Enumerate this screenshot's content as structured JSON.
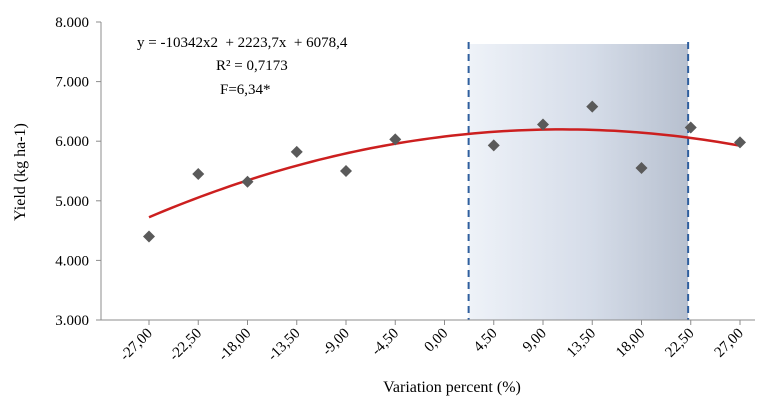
{
  "chart_data": {
    "type": "scatter",
    "xlabel": "Variation percent (%)",
    "ylabel": "Yield (kg ha-1)",
    "ylim": [
      3000,
      8000
    ],
    "yticks": [
      "3.000",
      "4.000",
      "5.000",
      "6.000",
      "7.000",
      "8.000"
    ],
    "yticks_values": [
      3000,
      4000,
      5000,
      6000,
      7000,
      8000
    ],
    "categories": [
      "-27,00",
      "-22,50",
      "-18,00",
      "-13,50",
      "-9,00",
      "-4,50",
      "0,00",
      "4,50",
      "9,00",
      "13,50",
      "18,00",
      "22,50",
      "27,00"
    ],
    "x": [
      -0.27,
      -0.225,
      -0.18,
      -0.135,
      -0.09,
      -0.045,
      0.0,
      0.045,
      0.09,
      0.135,
      0.18,
      0.225,
      0.27
    ],
    "points": [
      {
        "x": -0.27,
        "y": 4400
      },
      {
        "x": -0.225,
        "y": 5450
      },
      {
        "x": -0.18,
        "y": 5320
      },
      {
        "x": -0.135,
        "y": 5820
      },
      {
        "x": -0.09,
        "y": 5500
      },
      {
        "x": -0.045,
        "y": 6030
      },
      {
        "x": 0.045,
        "y": 5930
      },
      {
        "x": 0.09,
        "y": 6280
      },
      {
        "x": 0.135,
        "y": 6580
      },
      {
        "x": 0.18,
        "y": 5550
      },
      {
        "x": 0.225,
        "y": 6230
      },
      {
        "x": 0.27,
        "y": 5980
      }
    ],
    "trendline": {
      "a": -10342,
      "b": 2223.7,
      "c": 6078.4,
      "color": "#cc1f1f"
    },
    "equation_lines": [
      "y = -10342x2  + 2223,7x  + 6078,4",
      "R² = 0,7173",
      "F=6,34*"
    ],
    "highlight_band": {
      "x_from": 0.0,
      "x_to": 0.225,
      "border_color": "#2f5f9e"
    },
    "point_color": "#5a5a5a",
    "grid": false
  }
}
